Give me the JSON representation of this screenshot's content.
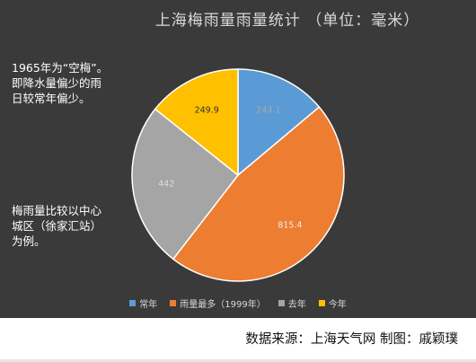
{
  "chart_data": {
    "type": "pie",
    "title": "上海梅雨量雨量统计 （单位：毫米）",
    "categories": [
      "常年",
      "雨量最多（1999年）",
      "去年",
      "今年"
    ],
    "values": [
      243.1,
      815.4,
      442,
      249.9
    ],
    "value_labels": [
      "243.1",
      "815.4",
      "442",
      "249.9"
    ],
    "colors": [
      "#5b9bd5",
      "#ed7d31",
      "#a5a5a5",
      "#ffc000"
    ],
    "legend_placement": "bottom"
  },
  "notes": {
    "note_1965": [
      "1965年为“空梅”。",
      "即降水量偏少的雨",
      "日较常年偏少。"
    ],
    "note_station": [
      "梅雨量比较以中心",
      "城区（徐家汇站）",
      "为例。"
    ]
  },
  "footer": {
    "credit": "数据来源：上海天气网 制图：戚颖璞"
  }
}
